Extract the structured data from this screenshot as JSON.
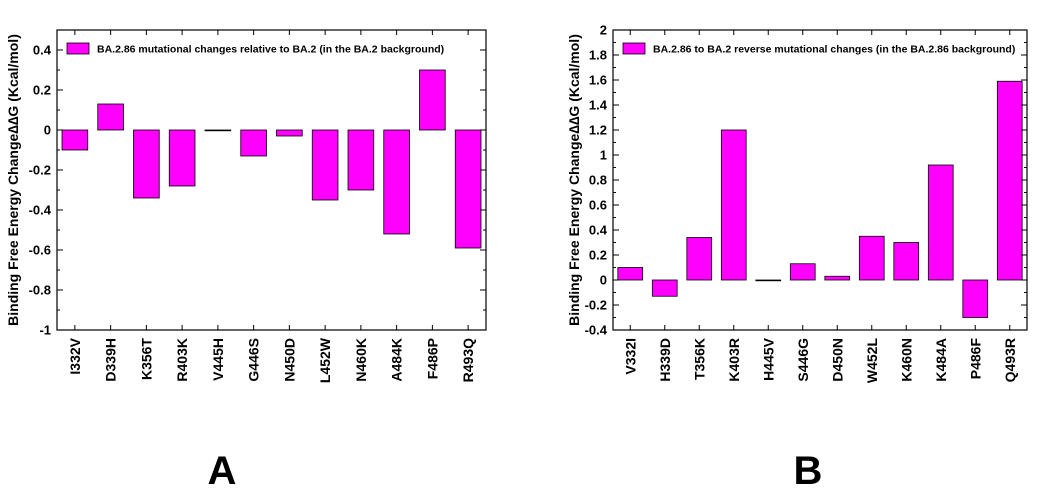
{
  "chart_data": [
    {
      "type": "bar",
      "panel_label": "A",
      "legend": "BA.2.86  mutational changes relative to BA.2 (in the BA.2 background)",
      "ylabel": "Binding Free Energy Change∆∆G (Kcal/mol)",
      "xlabel": "",
      "ylim": [
        -1,
        0.5
      ],
      "yticks": [
        -1,
        -0.8,
        -0.6,
        -0.4,
        -0.2,
        0,
        0.2,
        0.4
      ],
      "ytick_labels": [
        "-1",
        "-0.8",
        "-0.6",
        "-0.4",
        "-0.2",
        "0",
        "0.2",
        "0.4"
      ],
      "categories": [
        "I332V",
        "D339H",
        "K356T",
        "R403K",
        "V445H",
        "G446S",
        "N450D",
        "L452W",
        "N460K",
        "A484K",
        "F486P",
        "R493Q"
      ],
      "values": [
        -0.1,
        0.13,
        -0.34,
        -0.28,
        0.0,
        -0.13,
        -0.03,
        -0.35,
        -0.3,
        -0.52,
        0.3,
        -0.59
      ],
      "color": "#ff00ff"
    },
    {
      "type": "bar",
      "panel_label": "B",
      "legend": "BA.2.86 to BA.2 reverse mutational changes (in the BA.2.86 background)",
      "ylabel": "Binding Free Energy Change∆∆G (Kcal/mol)",
      "xlabel": "",
      "ylim": [
        -0.4,
        2
      ],
      "yticks": [
        -0.4,
        -0.2,
        0,
        0.2,
        0.4,
        0.6,
        0.8,
        1,
        1.2,
        1.4,
        1.6,
        1.8,
        2
      ],
      "ytick_labels": [
        "-0.4",
        "-0.2",
        "0",
        "0.2",
        "0.4",
        "0.6",
        "0.8",
        "1",
        "1.2",
        "1.4",
        "1.6",
        "1.8",
        "2"
      ],
      "categories": [
        "V332I",
        "H339D",
        "T356K",
        "K403R",
        "H445V",
        "S446G",
        "D450N",
        "W452L",
        "K460N",
        "K484A",
        "P486F",
        "Q493R"
      ],
      "values": [
        0.1,
        -0.13,
        0.34,
        1.2,
        0.0,
        0.13,
        0.03,
        0.35,
        0.3,
        0.92,
        -0.3,
        1.59
      ],
      "color": "#ff00ff"
    }
  ]
}
